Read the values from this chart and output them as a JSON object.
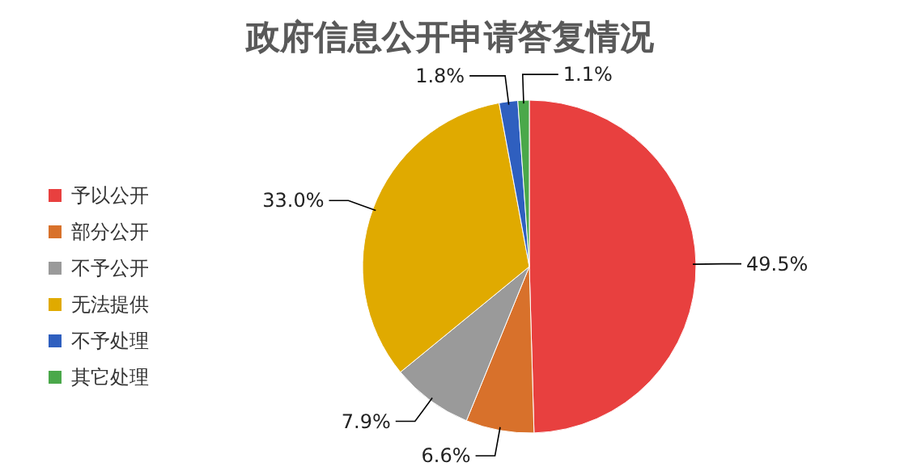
{
  "chart_data": {
    "type": "pie",
    "title": "政府信息公开申请答复情况",
    "categories": [
      "予以公开",
      "部分公开",
      "不予公开",
      "无法提供",
      "不予处理",
      "其它处理"
    ],
    "values": [
      49.5,
      6.6,
      7.9,
      33.0,
      1.8,
      1.1
    ],
    "colors": [
      "#e8403f",
      "#d8712b",
      "#9a9a9a",
      "#e0aa00",
      "#2f5fbf",
      "#4aa84a"
    ],
    "value_labels": [
      "49.5%",
      "6.6%",
      "7.9%",
      "33.0%",
      "1.8%",
      "1.1%"
    ],
    "legend": "left"
  }
}
